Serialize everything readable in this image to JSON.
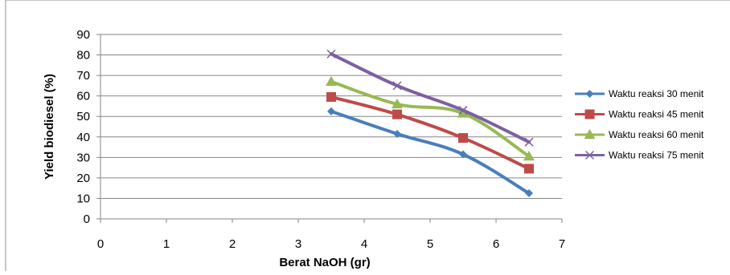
{
  "chart_data": {
    "type": "line",
    "title": "",
    "xlabel": "Berat NaOH (gr)",
    "ylabel": "Yield biodiesel (%)",
    "xlim": [
      0,
      7
    ],
    "ylim": [
      0,
      90
    ],
    "x_ticks": [
      0,
      1,
      2,
      3,
      4,
      5,
      6,
      7
    ],
    "y_ticks": [
      0,
      10,
      20,
      30,
      40,
      50,
      60,
      70,
      80,
      90
    ],
    "grid": "horizontal",
    "legend_position": "right",
    "series": [
      {
        "name": "Waktu reaksi 30 menit",
        "color": "#4a7ebb",
        "marker": "diamond",
        "x": [
          3.5,
          4.5,
          5.5,
          6.5
        ],
        "values": [
          52.5,
          41.5,
          31.5,
          12.5
        ]
      },
      {
        "name": "Waktu reaksi 45 menit",
        "color": "#be4b48",
        "marker": "square",
        "x": [
          3.5,
          4.5,
          5.5,
          6.5
        ],
        "values": [
          59.5,
          51,
          39.5,
          24.5
        ]
      },
      {
        "name": "Waktu reaksi 60 menit",
        "color": "#98b954",
        "marker": "triangle",
        "x": [
          3.5,
          4.5,
          5.5,
          6.5
        ],
        "values": [
          67,
          56,
          51.5,
          30.5
        ]
      },
      {
        "name": "Waktu reaksi 75 menit",
        "color": "#7d60a0",
        "marker": "x",
        "x": [
          3.5,
          4.5,
          5.5,
          6.5
        ],
        "values": [
          80.5,
          65,
          53,
          37.5
        ]
      }
    ]
  }
}
